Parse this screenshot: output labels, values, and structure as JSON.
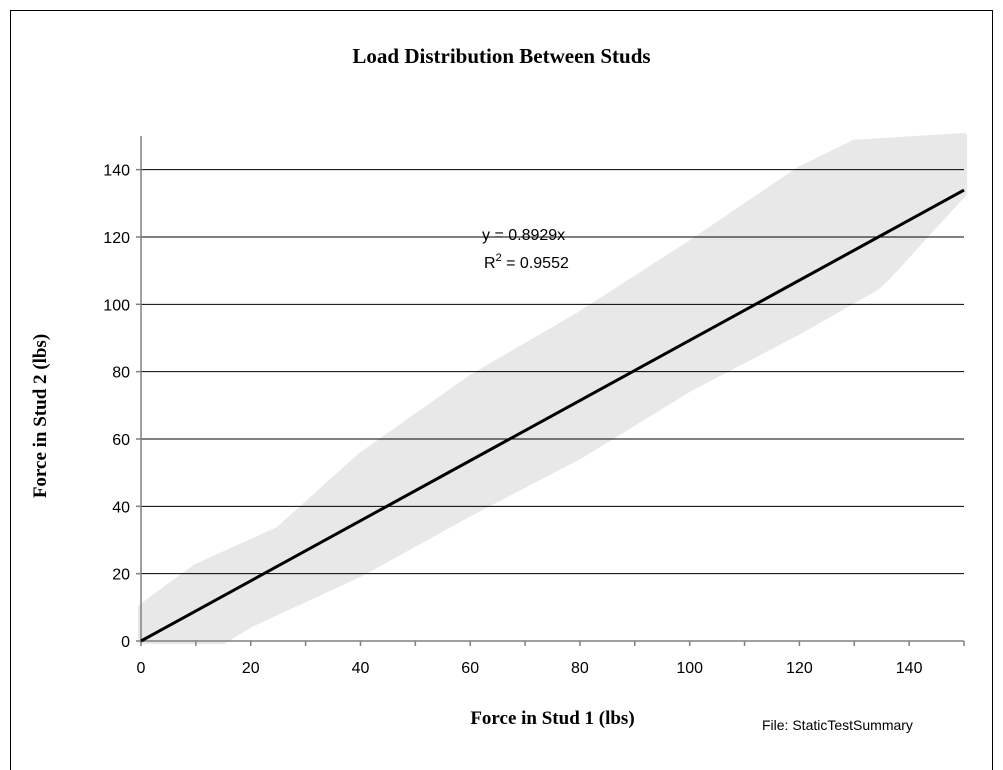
{
  "chart_data": {
    "type": "scatter",
    "title": "Load Distribution Between Studs",
    "xlabel": "Force in Stud 1 (lbs)",
    "ylabel": "Force in Stud 2 (lbs)",
    "xlim": [
      0,
      150
    ],
    "ylim": [
      0,
      150
    ],
    "x_ticks": [
      0,
      20,
      40,
      60,
      80,
      100,
      120,
      140
    ],
    "y_ticks": [
      0,
      20,
      40,
      60,
      80,
      100,
      120,
      140
    ],
    "grid": "horizontal",
    "marker_color": "#e8e8e8",
    "trendline": {
      "type": "linear",
      "slope": 0.8929,
      "intercept": 0,
      "color": "#000000",
      "equation_label": "y = 0.8929x",
      "r2_label_prefix": "R",
      "r2_label_sup": "2",
      "r2_label_value": " = 0.9552"
    },
    "scatter_band": {
      "description_points_upper": [
        [
          0,
          10
        ],
        [
          10,
          22
        ],
        [
          25,
          33
        ],
        [
          40,
          55
        ],
        [
          60,
          78
        ],
        [
          80,
          97
        ],
        [
          100,
          118
        ],
        [
          120,
          140
        ],
        [
          130,
          148
        ],
        [
          150,
          150
        ]
      ],
      "description_points_lower": [
        [
          0,
          0
        ],
        [
          15,
          0
        ],
        [
          20,
          5
        ],
        [
          40,
          20
        ],
        [
          60,
          38
        ],
        [
          80,
          55
        ],
        [
          100,
          75
        ],
        [
          120,
          92
        ],
        [
          134,
          105
        ],
        [
          136,
          108
        ],
        [
          150,
          133
        ]
      ]
    }
  },
  "footnote": "File: StaticTestSummary"
}
